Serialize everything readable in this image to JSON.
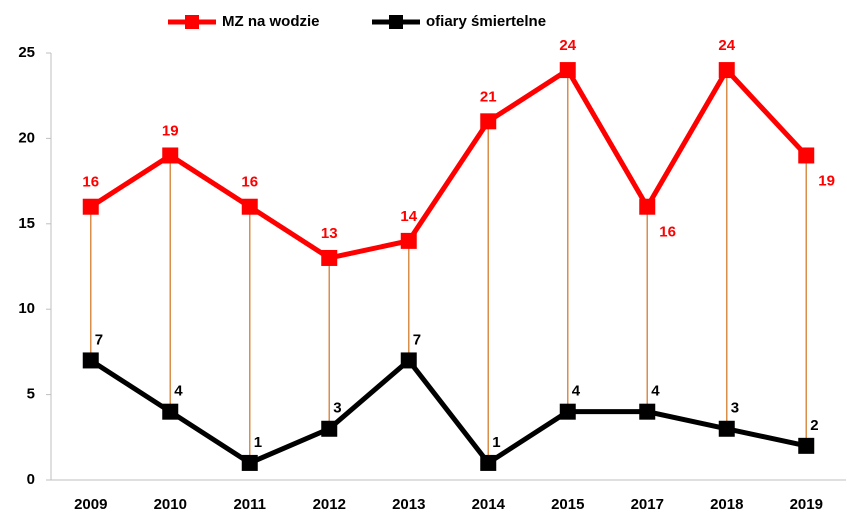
{
  "chart_data": {
    "type": "line",
    "categories": [
      "2009",
      "2010",
      "2011",
      "2012",
      "2013",
      "2014",
      "2015",
      "2017",
      "2018",
      "2019"
    ],
    "series": [
      {
        "name": "MZ na wodzie",
        "color": "#ff0000",
        "values": [
          16,
          19,
          16,
          13,
          14,
          21,
          24,
          16,
          24,
          19
        ]
      },
      {
        "name": "ofiary śmiertelne",
        "color": "#000000",
        "values": [
          7,
          4,
          1,
          3,
          7,
          1,
          4,
          4,
          3,
          2
        ]
      }
    ],
    "ylim": [
      0,
      25
    ],
    "yticks": [
      0,
      5,
      10,
      15,
      20,
      25
    ],
    "high_low_lines_color": "#d98e4a",
    "legend": "top"
  }
}
